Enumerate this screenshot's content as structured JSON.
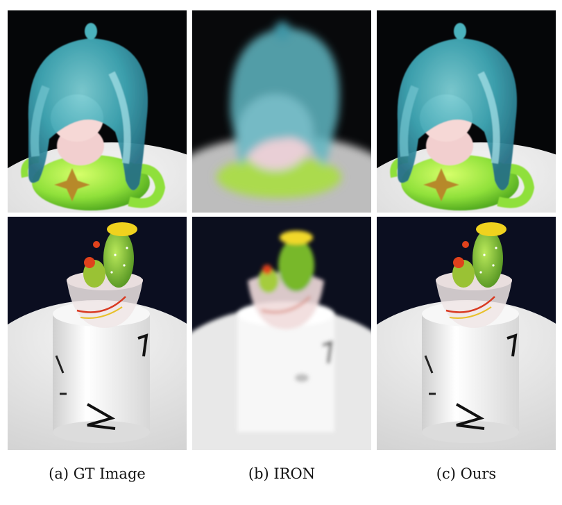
{
  "figure": {
    "captions": [
      "(a) GT Image",
      "(b) IRON",
      "(c) Ours"
    ],
    "rows": [
      {
        "subject": "figurine-with-teapot"
      },
      {
        "subject": "cactus-on-cup"
      }
    ]
  }
}
